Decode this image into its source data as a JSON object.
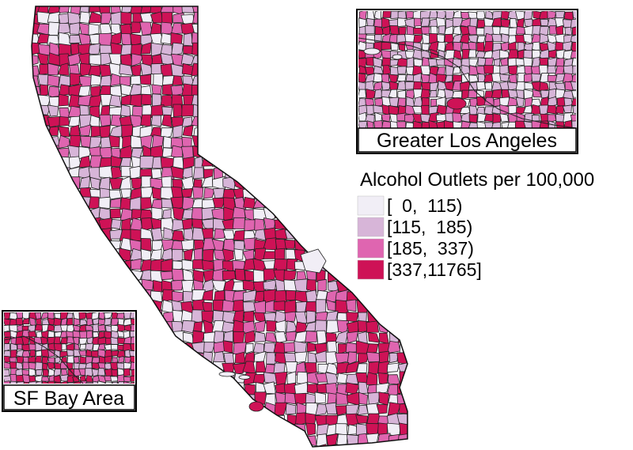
{
  "map": {
    "legend": {
      "title": "Alcohol Outlets per 100,000",
      "classes": [
        {
          "label": "[  0,  115)",
          "color": "#F1EEF6"
        },
        {
          "label": "[115,  185)",
          "color": "#D7B5D8"
        },
        {
          "label": "[185,  337)",
          "color": "#DF65B0"
        },
        {
          "label": "[337,11765]",
          "color": "#CE1256"
        }
      ]
    },
    "insets": {
      "los_angeles": {
        "caption": "Greater Los Angeles"
      },
      "bay_area": {
        "caption": "SF Bay Area"
      }
    }
  }
}
